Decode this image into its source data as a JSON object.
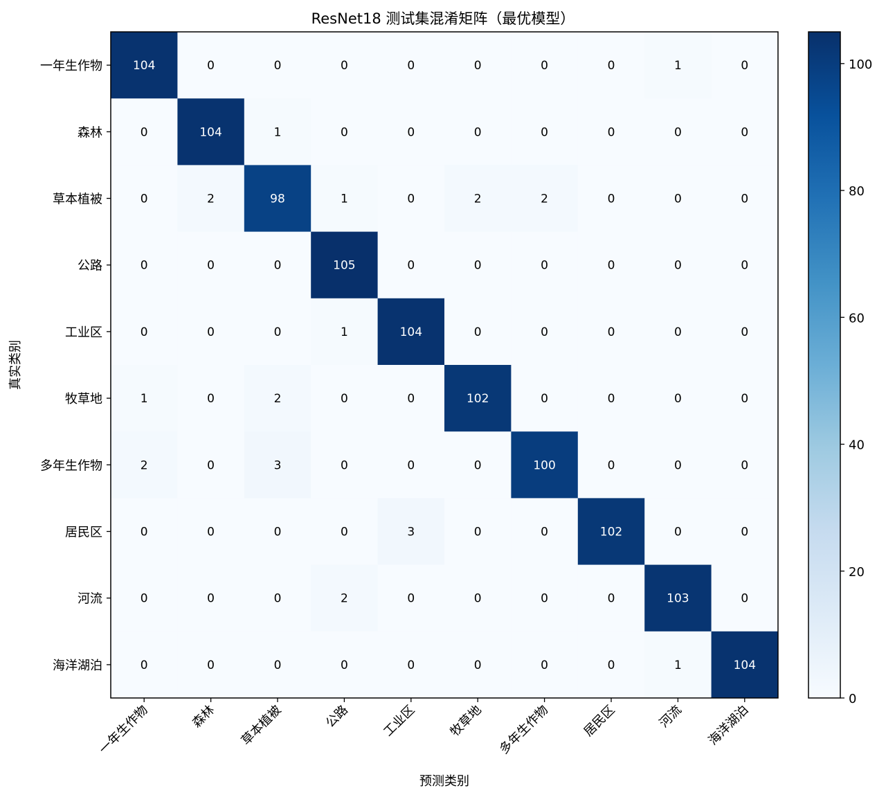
{
  "chart_data": {
    "type": "heatmap",
    "title": "ResNet18 测试集混淆矩阵（最优模型）",
    "xlabel": "预测类别",
    "ylabel": "真实类别",
    "x_categories": [
      "一年生作物",
      "森林",
      "草本植被",
      "公路",
      "工业区",
      "牧草地",
      "多年生作物",
      "居民区",
      "河流",
      "海洋湖泊"
    ],
    "y_categories": [
      "一年生作物",
      "森林",
      "草本植被",
      "公路",
      "工业区",
      "牧草地",
      "多年生作物",
      "居民区",
      "河流",
      "海洋湖泊"
    ],
    "matrix": [
      [
        104,
        0,
        0,
        0,
        0,
        0,
        0,
        0,
        1,
        0
      ],
      [
        0,
        104,
        1,
        0,
        0,
        0,
        0,
        0,
        0,
        0
      ],
      [
        0,
        2,
        98,
        1,
        0,
        2,
        2,
        0,
        0,
        0
      ],
      [
        0,
        0,
        0,
        105,
        0,
        0,
        0,
        0,
        0,
        0
      ],
      [
        0,
        0,
        0,
        1,
        104,
        0,
        0,
        0,
        0,
        0
      ],
      [
        1,
        0,
        2,
        0,
        0,
        102,
        0,
        0,
        0,
        0
      ],
      [
        2,
        0,
        3,
        0,
        0,
        0,
        100,
        0,
        0,
        0
      ],
      [
        0,
        0,
        0,
        0,
        3,
        0,
        0,
        102,
        0,
        0
      ],
      [
        0,
        0,
        0,
        2,
        0,
        0,
        0,
        0,
        103,
        0
      ],
      [
        0,
        0,
        0,
        0,
        0,
        0,
        0,
        0,
        1,
        104
      ]
    ],
    "colorbar": {
      "min": 0,
      "max": 105,
      "ticks": [
        0,
        20,
        40,
        60,
        80,
        100
      ],
      "colormap": "Blues"
    },
    "grid": false
  }
}
